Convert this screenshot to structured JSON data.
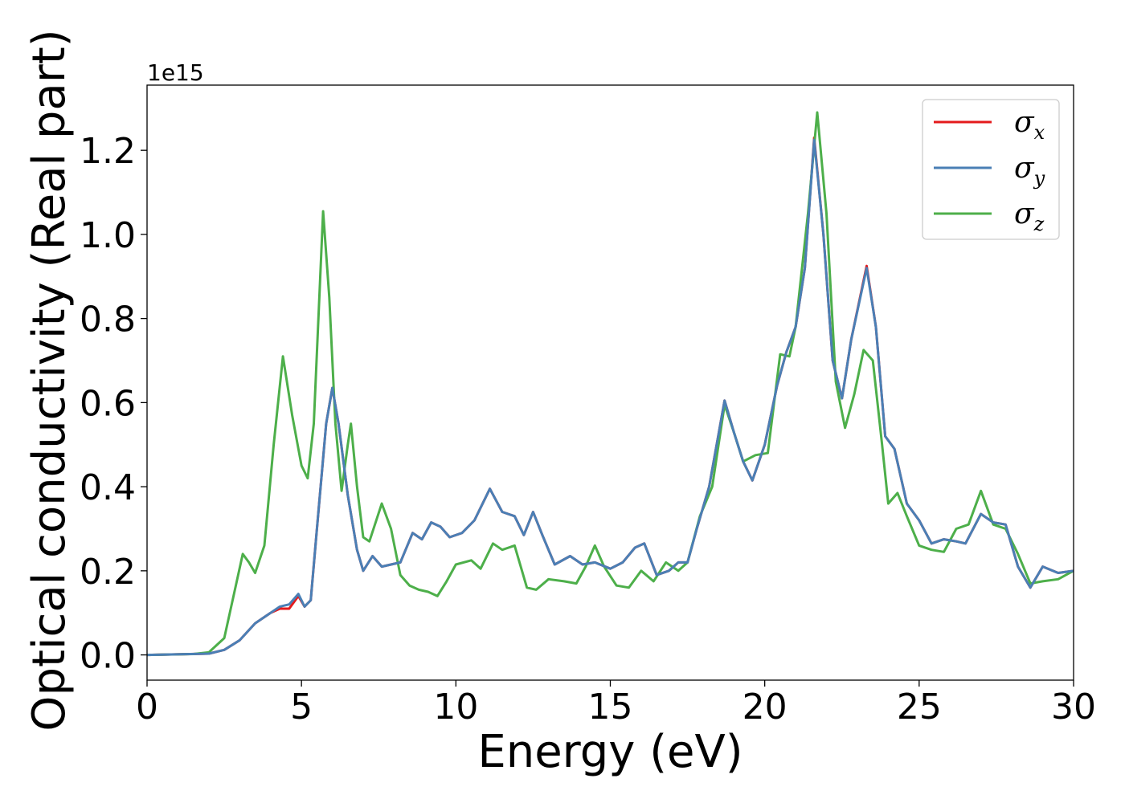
{
  "chart_data": {
    "type": "line",
    "title": "",
    "xlabel": "Energy (eV)",
    "ylabel": "Optical conductivity (Real part)",
    "y_offset_text": "1e15",
    "xlim": [
      0,
      30
    ],
    "ylim": [
      -0.06,
      1.355
    ],
    "x_ticks": [
      0,
      5,
      10,
      15,
      20,
      25,
      30
    ],
    "x_tick_labels": [
      "0",
      "5",
      "10",
      "15",
      "20",
      "25",
      "30"
    ],
    "y_ticks": [
      0.0,
      0.2,
      0.4,
      0.6,
      0.8,
      1.0,
      1.2
    ],
    "y_tick_labels": [
      "0.0",
      "0.2",
      "0.4",
      "0.6",
      "0.8",
      "1.0",
      "1.2"
    ],
    "grid": false,
    "legend_position": "top-right",
    "series": [
      {
        "name": "σx",
        "name_base": "σ",
        "name_sub": "x",
        "color": "#e41a1c",
        "points": [
          [
            0,
            0
          ],
          [
            2,
            0.003
          ],
          [
            2.5,
            0.012
          ],
          [
            3,
            0.035
          ],
          [
            3.5,
            0.075
          ],
          [
            4,
            0.1
          ],
          [
            4.3,
            0.11
          ],
          [
            4.6,
            0.11
          ],
          [
            4.9,
            0.14
          ],
          [
            5.1,
            0.115
          ],
          [
            5.3,
            0.13
          ],
          [
            5.5,
            0.3
          ],
          [
            5.8,
            0.55
          ],
          [
            6.0,
            0.635
          ],
          [
            6.2,
            0.55
          ],
          [
            6.5,
            0.38
          ],
          [
            6.8,
            0.25
          ],
          [
            7.0,
            0.2
          ],
          [
            7.3,
            0.235
          ],
          [
            7.6,
            0.21
          ],
          [
            7.9,
            0.215
          ],
          [
            8.2,
            0.22
          ],
          [
            8.6,
            0.29
          ],
          [
            8.9,
            0.275
          ],
          [
            9.2,
            0.315
          ],
          [
            9.5,
            0.305
          ],
          [
            9.8,
            0.28
          ],
          [
            10.2,
            0.29
          ],
          [
            10.6,
            0.32
          ],
          [
            11.1,
            0.395
          ],
          [
            11.5,
            0.34
          ],
          [
            11.9,
            0.33
          ],
          [
            12.2,
            0.285
          ],
          [
            12.5,
            0.34
          ],
          [
            12.8,
            0.285
          ],
          [
            13.2,
            0.215
          ],
          [
            13.7,
            0.235
          ],
          [
            14.1,
            0.215
          ],
          [
            14.5,
            0.22
          ],
          [
            15.0,
            0.205
          ],
          [
            15.4,
            0.22
          ],
          [
            15.8,
            0.255
          ],
          [
            16.1,
            0.265
          ],
          [
            16.5,
            0.19
          ],
          [
            16.9,
            0.2
          ],
          [
            17.2,
            0.22
          ],
          [
            17.5,
            0.22
          ],
          [
            17.8,
            0.3
          ],
          [
            18.2,
            0.4
          ],
          [
            18.7,
            0.605
          ],
          [
            19.0,
            0.53
          ],
          [
            19.3,
            0.46
          ],
          [
            19.6,
            0.415
          ],
          [
            20.0,
            0.5
          ],
          [
            20.4,
            0.64
          ],
          [
            20.7,
            0.72
          ],
          [
            21.0,
            0.78
          ],
          [
            21.3,
            0.92
          ],
          [
            21.6,
            1.23
          ],
          [
            21.9,
            1.0
          ],
          [
            22.2,
            0.7
          ],
          [
            22.5,
            0.61
          ],
          [
            22.8,
            0.75
          ],
          [
            23.3,
            0.925
          ],
          [
            23.6,
            0.78
          ],
          [
            23.9,
            0.52
          ],
          [
            24.2,
            0.49
          ],
          [
            24.6,
            0.36
          ],
          [
            25.0,
            0.32
          ],
          [
            25.4,
            0.265
          ],
          [
            25.8,
            0.275
          ],
          [
            26.2,
            0.27
          ],
          [
            26.5,
            0.265
          ],
          [
            27.0,
            0.335
          ],
          [
            27.4,
            0.315
          ],
          [
            27.8,
            0.31
          ],
          [
            28.2,
            0.21
          ],
          [
            28.6,
            0.16
          ],
          [
            29.0,
            0.21
          ],
          [
            29.5,
            0.195
          ],
          [
            30,
            0.2
          ]
        ]
      },
      {
        "name": "σy",
        "name_base": "σ",
        "name_sub": "y",
        "color": "#4a7fb5",
        "points": [
          [
            0,
            0
          ],
          [
            2,
            0.003
          ],
          [
            2.5,
            0.012
          ],
          [
            3,
            0.035
          ],
          [
            3.5,
            0.075
          ],
          [
            4,
            0.1
          ],
          [
            4.3,
            0.115
          ],
          [
            4.6,
            0.12
          ],
          [
            4.9,
            0.145
          ],
          [
            5.1,
            0.115
          ],
          [
            5.3,
            0.13
          ],
          [
            5.5,
            0.3
          ],
          [
            5.8,
            0.55
          ],
          [
            6.0,
            0.635
          ],
          [
            6.2,
            0.55
          ],
          [
            6.5,
            0.38
          ],
          [
            6.8,
            0.25
          ],
          [
            7.0,
            0.2
          ],
          [
            7.3,
            0.235
          ],
          [
            7.6,
            0.21
          ],
          [
            7.9,
            0.215
          ],
          [
            8.2,
            0.22
          ],
          [
            8.6,
            0.29
          ],
          [
            8.9,
            0.275
          ],
          [
            9.2,
            0.315
          ],
          [
            9.5,
            0.305
          ],
          [
            9.8,
            0.28
          ],
          [
            10.2,
            0.29
          ],
          [
            10.6,
            0.32
          ],
          [
            11.1,
            0.395
          ],
          [
            11.5,
            0.34
          ],
          [
            11.9,
            0.33
          ],
          [
            12.2,
            0.285
          ],
          [
            12.5,
            0.34
          ],
          [
            12.8,
            0.285
          ],
          [
            13.2,
            0.215
          ],
          [
            13.7,
            0.235
          ],
          [
            14.1,
            0.215
          ],
          [
            14.5,
            0.22
          ],
          [
            15.0,
            0.205
          ],
          [
            15.4,
            0.22
          ],
          [
            15.8,
            0.255
          ],
          [
            16.1,
            0.265
          ],
          [
            16.5,
            0.19
          ],
          [
            16.9,
            0.2
          ],
          [
            17.2,
            0.22
          ],
          [
            17.5,
            0.22
          ],
          [
            17.8,
            0.3
          ],
          [
            18.2,
            0.4
          ],
          [
            18.7,
            0.605
          ],
          [
            19.0,
            0.53
          ],
          [
            19.3,
            0.46
          ],
          [
            19.6,
            0.415
          ],
          [
            20.0,
            0.5
          ],
          [
            20.4,
            0.64
          ],
          [
            20.7,
            0.72
          ],
          [
            21.0,
            0.78
          ],
          [
            21.3,
            0.92
          ],
          [
            21.6,
            1.225
          ],
          [
            21.9,
            1.0
          ],
          [
            22.2,
            0.7
          ],
          [
            22.5,
            0.61
          ],
          [
            22.8,
            0.75
          ],
          [
            23.3,
            0.92
          ],
          [
            23.6,
            0.78
          ],
          [
            23.9,
            0.52
          ],
          [
            24.2,
            0.49
          ],
          [
            24.6,
            0.36
          ],
          [
            25.0,
            0.32
          ],
          [
            25.4,
            0.265
          ],
          [
            25.8,
            0.275
          ],
          [
            26.2,
            0.27
          ],
          [
            26.5,
            0.265
          ],
          [
            27.0,
            0.335
          ],
          [
            27.4,
            0.315
          ],
          [
            27.8,
            0.31
          ],
          [
            28.2,
            0.21
          ],
          [
            28.6,
            0.16
          ],
          [
            29.0,
            0.21
          ],
          [
            29.5,
            0.195
          ],
          [
            30,
            0.2
          ]
        ]
      },
      {
        "name": "σz",
        "name_base": "σ",
        "name_sub": "z",
        "color": "#4daf4a",
        "points": [
          [
            0,
            0
          ],
          [
            1.5,
            0.002
          ],
          [
            2,
            0.006
          ],
          [
            2.5,
            0.04
          ],
          [
            2.8,
            0.14
          ],
          [
            3.1,
            0.24
          ],
          [
            3.3,
            0.22
          ],
          [
            3.5,
            0.195
          ],
          [
            3.8,
            0.26
          ],
          [
            4.1,
            0.5
          ],
          [
            4.4,
            0.71
          ],
          [
            4.7,
            0.57
          ],
          [
            5.0,
            0.45
          ],
          [
            5.2,
            0.42
          ],
          [
            5.4,
            0.55
          ],
          [
            5.7,
            1.055
          ],
          [
            5.9,
            0.85
          ],
          [
            6.1,
            0.55
          ],
          [
            6.3,
            0.39
          ],
          [
            6.5,
            0.5
          ],
          [
            6.6,
            0.55
          ],
          [
            6.8,
            0.4
          ],
          [
            7.0,
            0.28
          ],
          [
            7.2,
            0.27
          ],
          [
            7.6,
            0.36
          ],
          [
            7.9,
            0.3
          ],
          [
            8.2,
            0.19
          ],
          [
            8.5,
            0.165
          ],
          [
            8.8,
            0.155
          ],
          [
            9.1,
            0.15
          ],
          [
            9.4,
            0.14
          ],
          [
            9.7,
            0.175
          ],
          [
            10.0,
            0.215
          ],
          [
            10.5,
            0.225
          ],
          [
            10.8,
            0.205
          ],
          [
            11.2,
            0.265
          ],
          [
            11.5,
            0.25
          ],
          [
            11.9,
            0.26
          ],
          [
            12.3,
            0.16
          ],
          [
            12.6,
            0.155
          ],
          [
            13.0,
            0.18
          ],
          [
            13.5,
            0.175
          ],
          [
            13.9,
            0.17
          ],
          [
            14.2,
            0.21
          ],
          [
            14.5,
            0.26
          ],
          [
            14.8,
            0.21
          ],
          [
            15.2,
            0.165
          ],
          [
            15.6,
            0.16
          ],
          [
            16.0,
            0.2
          ],
          [
            16.4,
            0.175
          ],
          [
            16.8,
            0.22
          ],
          [
            17.2,
            0.2
          ],
          [
            17.5,
            0.22
          ],
          [
            17.9,
            0.33
          ],
          [
            18.3,
            0.4
          ],
          [
            18.7,
            0.595
          ],
          [
            19.0,
            0.53
          ],
          [
            19.3,
            0.46
          ],
          [
            19.7,
            0.475
          ],
          [
            20.1,
            0.48
          ],
          [
            20.5,
            0.715
          ],
          [
            20.8,
            0.71
          ],
          [
            21.0,
            0.78
          ],
          [
            21.4,
            1.05
          ],
          [
            21.7,
            1.29
          ],
          [
            22.0,
            1.05
          ],
          [
            22.3,
            0.65
          ],
          [
            22.6,
            0.54
          ],
          [
            22.9,
            0.62
          ],
          [
            23.2,
            0.725
          ],
          [
            23.5,
            0.7
          ],
          [
            23.8,
            0.5
          ],
          [
            24.0,
            0.36
          ],
          [
            24.3,
            0.385
          ],
          [
            24.6,
            0.33
          ],
          [
            25.0,
            0.26
          ],
          [
            25.4,
            0.25
          ],
          [
            25.8,
            0.245
          ],
          [
            26.2,
            0.3
          ],
          [
            26.6,
            0.31
          ],
          [
            27.0,
            0.39
          ],
          [
            27.4,
            0.31
          ],
          [
            27.8,
            0.3
          ],
          [
            28.2,
            0.24
          ],
          [
            28.6,
            0.17
          ],
          [
            29.0,
            0.175
          ],
          [
            29.5,
            0.18
          ],
          [
            30,
            0.2
          ]
        ]
      }
    ]
  }
}
